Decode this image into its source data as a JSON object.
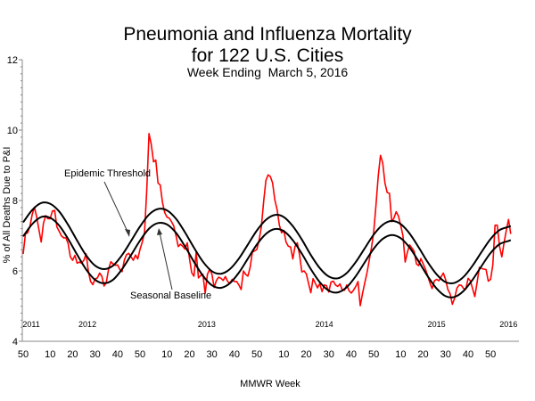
{
  "chart_data": {
    "type": "line",
    "title": [
      "Pneumonia and Influenza Mortality",
      "for 122 U.S. Cities"
    ],
    "subtitle": "Week Ending  March 5, 2016",
    "xlabel": "MMWR Week",
    "ylabel": "% of All Deaths Due to P&I",
    "ylim": [
      4,
      12
    ],
    "y_ticks": [
      "4",
      "6",
      "8",
      "10",
      "12"
    ],
    "x_tick_labels": [
      "50",
      "10",
      "20",
      "30",
      "40",
      "50",
      "10",
      "20",
      "30",
      "40",
      "50",
      "10",
      "20",
      "30",
      "40",
      "50",
      "10",
      "20",
      "30",
      "40",
      "50"
    ],
    "year_labels": [
      "2011",
      "2012",
      "2013",
      "2014",
      "2015",
      "2016"
    ],
    "grid": false,
    "annotations": [
      "Epidemic Threshold",
      "Seasonal Baseline"
    ],
    "colors": {
      "observed": "#ff0000",
      "baseline": "#000000",
      "threshold": "#000000"
    },
    "series": [
      {
        "key": "observed",
        "values": [
          6.48,
          7.05,
          7.08,
          7.27,
          7.6,
          7.81,
          7.54,
          7.18,
          6.82,
          7.35,
          7.57,
          7.48,
          7.48,
          7.7,
          7.72,
          7.25,
          7.13,
          7.0,
          6.94,
          6.94,
          6.78,
          6.4,
          6.3,
          6.44,
          6.22,
          6.25,
          6.22,
          6.3,
          6.48,
          5.99,
          5.7,
          5.61,
          5.77,
          5.8,
          5.94,
          5.85,
          5.57,
          5.67,
          6.05,
          6.26,
          6.2,
          6.16,
          6.17,
          6.04,
          5.98,
          6.3,
          6.46,
          6.5,
          6.4,
          6.3,
          6.45,
          6.34,
          6.61,
          6.82,
          7.1,
          8.3,
          9.9,
          9.6,
          9.1,
          9.15,
          8.5,
          8.44,
          7.95,
          7.65,
          7.53,
          7.5,
          7.4,
          7.28,
          7.0,
          6.69,
          6.76,
          6.7,
          6.62,
          6.8,
          6.35,
          5.95,
          5.85,
          6.53,
          5.8,
          5.87,
          5.9,
          5.36,
          5.9,
          6.05,
          5.9,
          5.53,
          5.73,
          5.82,
          5.79,
          5.73,
          5.84,
          5.7,
          5.65,
          5.76,
          5.7,
          5.7,
          5.6,
          5.47,
          6.0,
          5.9,
          5.85,
          6.1,
          6.53,
          6.57,
          6.61,
          6.88,
          7.25,
          7.95,
          8.57,
          8.73,
          8.68,
          8.5,
          8.02,
          7.74,
          7.3,
          7.08,
          7.15,
          6.82,
          6.7,
          6.68,
          6.34,
          6.7,
          6.8,
          6.45,
          5.97,
          6.0,
          5.92,
          5.65,
          5.38,
          5.78,
          5.65,
          5.52,
          5.64,
          5.41,
          5.6,
          5.58,
          5.4,
          5.68,
          5.71,
          5.6,
          5.56,
          5.63,
          5.46,
          5.45,
          5.6,
          5.44,
          5.37,
          5.45,
          5.56,
          5.7,
          5.01,
          5.35,
          5.65,
          5.95,
          6.3,
          6.66,
          7.1,
          7.85,
          8.7,
          9.28,
          9.07,
          8.5,
          8.23,
          8.2,
          7.4,
          7.5,
          7.68,
          7.56,
          7.3,
          7.0,
          6.25,
          6.53,
          6.74,
          6.65,
          6.56,
          6.2,
          6.15,
          6.35,
          6.2,
          6.05,
          5.87,
          5.66,
          5.5,
          5.72,
          5.76,
          5.72,
          5.83,
          5.94,
          5.75,
          5.47,
          5.35,
          5.05,
          5.22,
          5.51,
          5.6,
          5.59,
          5.5,
          5.48,
          5.79,
          5.72,
          5.5,
          5.27,
          5.66,
          6.1,
          6.07,
          6.05,
          6.04,
          5.71,
          5.76,
          6.17,
          7.3,
          7.3,
          6.7,
          6.4,
          6.8,
          7.15,
          7.46,
          7.05
        ]
      },
      {
        "key": "baseline",
        "name": "Seasonal Baseline",
        "values": [
          6.98,
          7.33,
          7.53,
          7.51,
          7.29,
          6.91,
          6.46,
          6.04,
          5.75,
          5.65,
          5.75,
          6.05,
          6.45,
          6.86,
          7.2,
          7.36,
          7.32,
          7.08,
          6.7,
          6.26,
          5.86,
          5.59,
          5.52,
          5.65,
          5.95,
          6.35,
          6.75,
          7.05,
          7.19,
          7.13,
          6.87,
          6.49,
          6.05,
          5.68,
          5.44,
          5.39,
          5.54,
          5.85,
          6.24,
          6.63,
          6.91,
          7.02,
          6.93,
          6.66,
          6.27,
          5.85,
          5.5,
          5.28,
          5.26,
          5.43,
          5.75,
          6.14,
          6.51,
          6.76,
          6.85
        ]
      },
      {
        "key": "threshold",
        "name": "Epidemic Threshold",
        "values": [
          7.38,
          7.73,
          7.93,
          7.91,
          7.69,
          7.31,
          6.86,
          6.44,
          6.15,
          6.05,
          6.15,
          6.45,
          6.85,
          7.26,
          7.6,
          7.76,
          7.72,
          7.48,
          7.1,
          6.66,
          6.26,
          5.99,
          5.92,
          6.05,
          6.35,
          6.75,
          7.15,
          7.45,
          7.59,
          7.53,
          7.27,
          6.89,
          6.45,
          6.08,
          5.84,
          5.79,
          5.94,
          6.25,
          6.64,
          7.03,
          7.31,
          7.42,
          7.33,
          7.06,
          6.67,
          6.25,
          5.9,
          5.68,
          5.66,
          5.83,
          6.15,
          6.54,
          6.91,
          7.16,
          7.25
        ]
      }
    ]
  }
}
